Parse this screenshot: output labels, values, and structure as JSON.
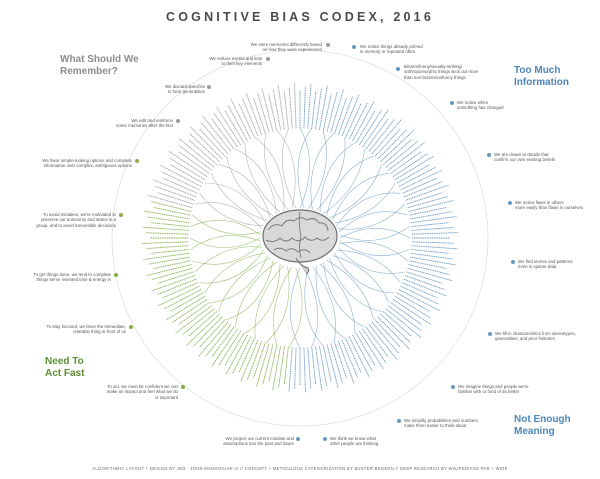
{
  "title": "COGNITIVE BIAS CODEX, 2016",
  "quadrants": [
    {
      "id": "remember",
      "label_line1": "What Should We",
      "label_line2": "Remember?",
      "color": "#8b8d90"
    },
    {
      "id": "info",
      "label_line1": "Too Much",
      "label_line2": "Information",
      "color": "#4d86b8"
    },
    {
      "id": "meaning",
      "label_line1": "Not Enough",
      "label_line2": "Meaning",
      "color": "#4d86b8"
    },
    {
      "id": "fast",
      "label_line1": "Need To",
      "label_line2": "Act Fast",
      "color": "#5f8f34"
    }
  ],
  "statements": {
    "remember_top": [
      "We store memories differently based",
      "on how they were experienced"
    ],
    "remember_reduce": [
      "We reduce events and lists",
      "to their key elements"
    ],
    "remember_discard": [
      "We discard specifics",
      "to form generalities"
    ],
    "remember_edit": [
      "We edit and reinforce",
      "some memories after the fact"
    ],
    "info_primed": [
      "We notice things already primed",
      "in memory or repeated often"
    ],
    "info_bizarre": [
      "Bizarre/funny/visually-striking/",
      "anthropomorphic things stick out more",
      "than non-bizarre/unfunny things"
    ],
    "info_changed": [
      "We notice when",
      "something has changed"
    ],
    "info_details": [
      "We are drawn to details that",
      "confirm our own existing beliefs"
    ],
    "info_flaws": [
      "We notice flaws in others",
      "more easily than flaws in ourselves"
    ],
    "meaning_stories": [
      "We find stories and patterns",
      "even in sparse data"
    ],
    "meaning_fill": [
      "We fill in characteristics from stereotypes,",
      "generalities, and prior histories"
    ],
    "meaning_imagine": [
      "We imagine things and people we're",
      "familiar with or fond of as better"
    ],
    "meaning_simplify": [
      "We simplify probabilities and numbers",
      "make them easier to think about"
    ],
    "meaning_think": [
      "We think we know what",
      "other people are thinking"
    ],
    "meaning_project": [
      "We project our current mindset and",
      "assumptions into the past and future"
    ],
    "fast_favor": [
      "We favor simple-looking options and complete",
      "information over complex, ambiguous options"
    ],
    "fast_avoid": [
      "To avoid mistakes, we're motivated to",
      "preserve our autonomy and status in a",
      "group, and to avoid irreversible decisions"
    ],
    "fast_done": [
      "To get things done, we tend to complete",
      "things we've invested time & energy in"
    ],
    "fast_focused": [
      "To stay focused, we favor the immediate,",
      "relatable thing in front of us"
    ],
    "fast_confident": [
      "To act, we must be confident we can",
      "make an impact and feel what we do",
      "is important"
    ]
  },
  "credits": "ALGORITHMIC LAYOUT + DESIGN BY JM3 · JOHN MANOOGIAN III // CONCEPT + METICULOUS CATEGORIZATION BY BUSTER BENSON // DEEP RESEARCH BY WIKIPEDIANS PAR + WIDE",
  "colors": {
    "gray": "#9a9c9f",
    "blue": "#6897c2",
    "green": "#82ad4b",
    "brain": "#8a8a8a"
  },
  "icons": [
    "brain-icon"
  ]
}
